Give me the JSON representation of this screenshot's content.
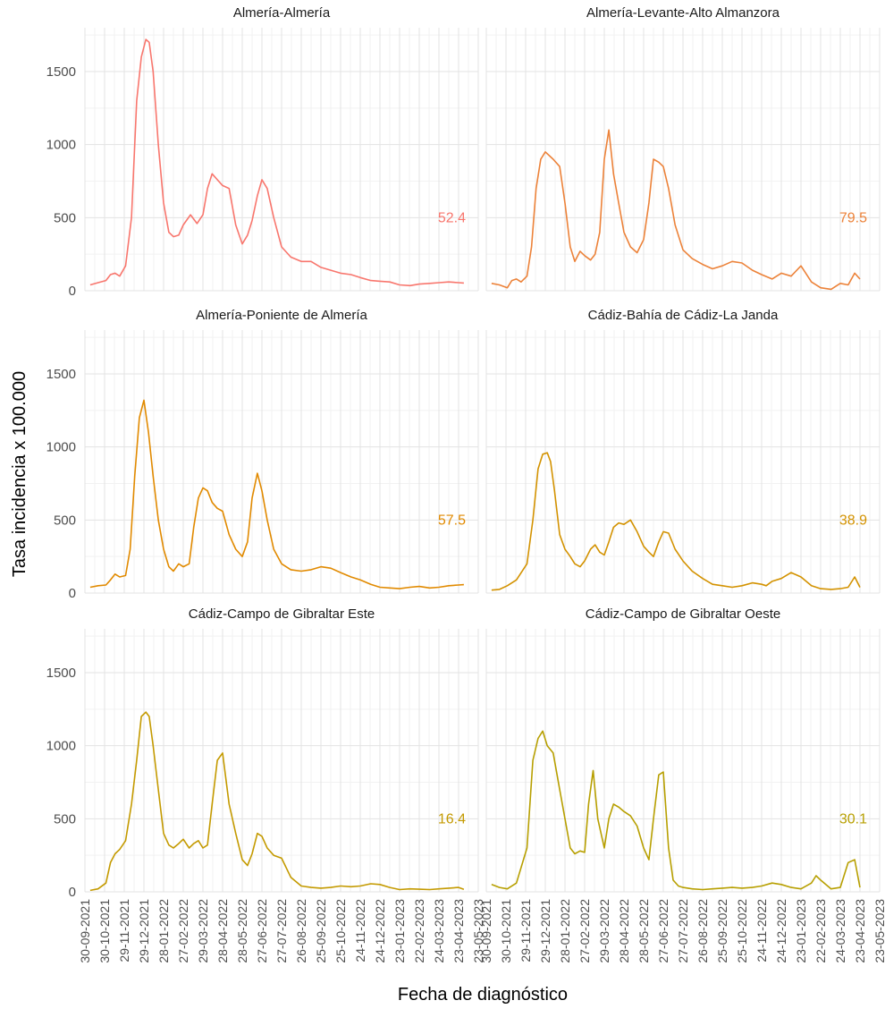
{
  "chart_data": {
    "type": "line",
    "facet_layout": "3 rows x 2 columns, shared axes",
    "xlabel": "Fecha de diagnóstico",
    "ylabel": "Tasa incidencia x 100.000",
    "xlim": [
      "2021-09-30",
      "2023-05-23"
    ],
    "ylim": [
      0,
      1800
    ],
    "yticks": [
      0,
      500,
      1000,
      1500
    ],
    "xticks": [
      "30-09-2021",
      "30-10-2021",
      "29-11-2021",
      "29-12-2021",
      "28-01-2022",
      "27-02-2022",
      "29-03-2022",
      "28-04-2022",
      "28-05-2022",
      "27-06-2022",
      "27-07-2022",
      "26-08-2022",
      "25-09-2022",
      "25-10-2022",
      "24-11-2022",
      "24-12-2022",
      "23-01-2023",
      "22-02-2023",
      "24-03-2023",
      "23-04-2023",
      "23-05-2023"
    ],
    "grid": true,
    "legend": "none",
    "panels": [
      {
        "name": "Almería-Almería",
        "color": "#f8766d",
        "last_value_label": "52.4",
        "x": [
          "2021-10-08",
          "2021-10-20",
          "2021-11-01",
          "2021-11-08",
          "2021-11-15",
          "2021-11-22",
          "2021-12-01",
          "2021-12-10",
          "2021-12-18",
          "2021-12-25",
          "2022-01-01",
          "2022-01-06",
          "2022-01-12",
          "2022-01-20",
          "2022-01-28",
          "2022-02-05",
          "2022-02-12",
          "2022-02-20",
          "2022-02-27",
          "2022-03-10",
          "2022-03-20",
          "2022-03-29",
          "2022-04-05",
          "2022-04-12",
          "2022-04-20",
          "2022-04-28",
          "2022-05-08",
          "2022-05-18",
          "2022-05-28",
          "2022-06-05",
          "2022-06-12",
          "2022-06-20",
          "2022-06-27",
          "2022-07-05",
          "2022-07-15",
          "2022-07-27",
          "2022-08-10",
          "2022-08-26",
          "2022-09-10",
          "2022-09-25",
          "2022-10-10",
          "2022-10-25",
          "2022-11-10",
          "2022-11-24",
          "2022-12-10",
          "2022-12-24",
          "2023-01-08",
          "2023-01-23",
          "2023-02-08",
          "2023-02-22",
          "2023-03-10",
          "2023-03-24",
          "2023-04-08",
          "2023-04-23",
          "2023-05-01"
        ],
        "y": [
          40,
          55,
          70,
          110,
          120,
          100,
          170,
          500,
          1300,
          1600,
          1720,
          1700,
          1500,
          1000,
          600,
          400,
          370,
          380,
          450,
          520,
          460,
          520,
          700,
          800,
          760,
          720,
          700,
          450,
          320,
          380,
          480,
          650,
          760,
          700,
          500,
          300,
          230,
          200,
          200,
          160,
          140,
          120,
          110,
          90,
          70,
          65,
          60,
          40,
          35,
          45,
          50,
          55,
          60,
          55,
          52.4
        ]
      },
      {
        "name": "Almería-Levante-Alto Almanzora",
        "color": "#ec8239",
        "last_value_label": "79.5",
        "x": [
          "2021-10-08",
          "2021-10-20",
          "2021-11-01",
          "2021-11-08",
          "2021-11-15",
          "2021-11-22",
          "2021-12-01",
          "2021-12-08",
          "2021-12-15",
          "2021-12-22",
          "2021-12-29",
          "2022-01-10",
          "2022-01-20",
          "2022-01-28",
          "2022-02-05",
          "2022-02-12",
          "2022-02-20",
          "2022-02-27",
          "2022-03-08",
          "2022-03-15",
          "2022-03-22",
          "2022-03-29",
          "2022-04-05",
          "2022-04-12",
          "2022-04-20",
          "2022-04-28",
          "2022-05-08",
          "2022-05-18",
          "2022-05-28",
          "2022-06-05",
          "2022-06-12",
          "2022-06-20",
          "2022-06-27",
          "2022-07-05",
          "2022-07-15",
          "2022-07-27",
          "2022-08-10",
          "2022-08-26",
          "2022-09-10",
          "2022-09-25",
          "2022-10-10",
          "2022-10-25",
          "2022-11-10",
          "2022-11-24",
          "2022-12-10",
          "2022-12-24",
          "2023-01-08",
          "2023-01-23",
          "2023-02-08",
          "2023-02-22",
          "2023-03-10",
          "2023-03-24",
          "2023-04-05",
          "2023-04-15",
          "2023-04-23"
        ],
        "y": [
          50,
          40,
          20,
          70,
          80,
          60,
          100,
          300,
          700,
          900,
          950,
          900,
          850,
          600,
          300,
          200,
          270,
          240,
          210,
          250,
          400,
          900,
          1100,
          800,
          600,
          400,
          300,
          260,
          350,
          600,
          900,
          880,
          850,
          700,
          450,
          280,
          220,
          180,
          150,
          170,
          200,
          190,
          140,
          110,
          80,
          120,
          100,
          170,
          60,
          20,
          10,
          50,
          40,
          120,
          79.5
        ]
      },
      {
        "name": "Almería-Poniente de Almería",
        "color": "#e18a00",
        "last_value_label": "57.5",
        "x": [
          "2021-10-08",
          "2021-10-20",
          "2021-11-01",
          "2021-11-08",
          "2021-11-15",
          "2021-11-22",
          "2021-12-01",
          "2021-12-08",
          "2021-12-15",
          "2021-12-22",
          "2021-12-29",
          "2022-01-05",
          "2022-01-12",
          "2022-01-20",
          "2022-01-28",
          "2022-02-05",
          "2022-02-12",
          "2022-02-20",
          "2022-02-27",
          "2022-03-08",
          "2022-03-15",
          "2022-03-22",
          "2022-03-29",
          "2022-04-05",
          "2022-04-12",
          "2022-04-20",
          "2022-04-28",
          "2022-05-08",
          "2022-05-18",
          "2022-05-28",
          "2022-06-05",
          "2022-06-12",
          "2022-06-20",
          "2022-06-27",
          "2022-07-05",
          "2022-07-15",
          "2022-07-27",
          "2022-08-10",
          "2022-08-26",
          "2022-09-10",
          "2022-09-25",
          "2022-10-10",
          "2022-10-25",
          "2022-11-10",
          "2022-11-24",
          "2022-12-10",
          "2022-12-24",
          "2023-01-08",
          "2023-01-23",
          "2023-02-08",
          "2023-02-22",
          "2023-03-10",
          "2023-03-24",
          "2023-04-08",
          "2023-04-23",
          "2023-05-01"
        ],
        "y": [
          40,
          50,
          55,
          90,
          130,
          110,
          120,
          300,
          800,
          1200,
          1320,
          1100,
          800,
          500,
          300,
          180,
          150,
          200,
          180,
          200,
          450,
          650,
          720,
          700,
          620,
          580,
          560,
          400,
          300,
          250,
          350,
          650,
          820,
          700,
          500,
          300,
          200,
          160,
          150,
          160,
          180,
          170,
          140,
          110,
          90,
          60,
          40,
          35,
          30,
          40,
          45,
          35,
          40,
          50,
          55,
          57.5
        ]
      },
      {
        "name": "Cádiz-Bahía de Cádiz-La Janda",
        "color": "#d39200",
        "last_value_label": "38.9",
        "x": [
          "2021-10-08",
          "2021-10-20",
          "2021-11-01",
          "2021-11-15",
          "2021-12-01",
          "2021-12-10",
          "2021-12-18",
          "2021-12-25",
          "2022-01-01",
          "2022-01-06",
          "2022-01-12",
          "2022-01-20",
          "2022-01-28",
          "2022-02-05",
          "2022-02-12",
          "2022-02-20",
          "2022-02-27",
          "2022-03-08",
          "2022-03-15",
          "2022-03-22",
          "2022-03-29",
          "2022-04-05",
          "2022-04-12",
          "2022-04-20",
          "2022-04-28",
          "2022-05-08",
          "2022-05-18",
          "2022-05-28",
          "2022-06-05",
          "2022-06-12",
          "2022-06-20",
          "2022-06-27",
          "2022-07-05",
          "2022-07-15",
          "2022-07-27",
          "2022-08-10",
          "2022-08-26",
          "2022-09-10",
          "2022-09-25",
          "2022-10-10",
          "2022-10-25",
          "2022-11-10",
          "2022-11-24",
          "2022-12-01",
          "2022-12-10",
          "2022-12-24",
          "2023-01-08",
          "2023-01-23",
          "2023-02-08",
          "2023-02-22",
          "2023-03-10",
          "2023-03-24",
          "2023-04-05",
          "2023-04-15",
          "2023-04-23"
        ],
        "y": [
          20,
          25,
          50,
          90,
          200,
          500,
          850,
          950,
          960,
          900,
          700,
          400,
          300,
          250,
          200,
          180,
          220,
          300,
          330,
          280,
          260,
          350,
          450,
          480,
          470,
          500,
          420,
          320,
          280,
          250,
          350,
          420,
          410,
          300,
          220,
          150,
          100,
          60,
          50,
          40,
          50,
          70,
          60,
          50,
          80,
          100,
          140,
          110,
          50,
          30,
          25,
          30,
          40,
          110,
          38.9
        ]
      },
      {
        "name": "Cádiz-Campo de Gibraltar Este",
        "color": "#c49a00",
        "last_value_label": "16.4",
        "x": [
          "2021-10-08",
          "2021-10-20",
          "2021-11-01",
          "2021-11-08",
          "2021-11-15",
          "2021-11-22",
          "2021-12-01",
          "2021-12-10",
          "2021-12-18",
          "2021-12-25",
          "2022-01-01",
          "2022-01-06",
          "2022-01-12",
          "2022-01-20",
          "2022-01-28",
          "2022-02-05",
          "2022-02-12",
          "2022-02-20",
          "2022-02-27",
          "2022-03-08",
          "2022-03-15",
          "2022-03-22",
          "2022-03-29",
          "2022-04-05",
          "2022-04-12",
          "2022-04-20",
          "2022-04-28",
          "2022-05-08",
          "2022-05-18",
          "2022-05-28",
          "2022-06-05",
          "2022-06-12",
          "2022-06-20",
          "2022-06-27",
          "2022-07-05",
          "2022-07-15",
          "2022-07-27",
          "2022-08-10",
          "2022-08-26",
          "2022-09-10",
          "2022-09-25",
          "2022-10-10",
          "2022-10-25",
          "2022-11-10",
          "2022-11-24",
          "2022-12-10",
          "2022-12-24",
          "2023-01-08",
          "2023-01-23",
          "2023-02-08",
          "2023-02-22",
          "2023-03-10",
          "2023-03-24",
          "2023-04-08",
          "2023-04-23",
          "2023-05-01"
        ],
        "y": [
          10,
          20,
          60,
          200,
          260,
          290,
          350,
          600,
          900,
          1200,
          1230,
          1200,
          1000,
          700,
          400,
          320,
          300,
          330,
          360,
          300,
          330,
          350,
          300,
          320,
          600,
          900,
          950,
          600,
          400,
          220,
          180,
          260,
          400,
          380,
          300,
          250,
          230,
          100,
          40,
          30,
          25,
          30,
          40,
          35,
          40,
          55,
          50,
          30,
          15,
          20,
          18,
          15,
          20,
          25,
          30,
          16.4
        ]
      },
      {
        "name": "Cádiz-Campo de Gibraltar Oeste",
        "color": "#b79f00",
        "last_value_label": "30.1",
        "x": [
          "2021-10-08",
          "2021-10-20",
          "2021-11-01",
          "2021-11-15",
          "2021-12-01",
          "2021-12-10",
          "2021-12-18",
          "2021-12-25",
          "2022-01-01",
          "2022-01-10",
          "2022-01-20",
          "2022-01-28",
          "2022-02-05",
          "2022-02-12",
          "2022-02-20",
          "2022-02-27",
          "2022-03-05",
          "2022-03-12",
          "2022-03-19",
          "2022-03-29",
          "2022-04-05",
          "2022-04-12",
          "2022-04-20",
          "2022-04-28",
          "2022-05-08",
          "2022-05-18",
          "2022-05-28",
          "2022-06-05",
          "2022-06-12",
          "2022-06-20",
          "2022-06-27",
          "2022-07-05",
          "2022-07-12",
          "2022-07-20",
          "2022-07-27",
          "2022-08-10",
          "2022-08-26",
          "2022-09-10",
          "2022-09-25",
          "2022-10-10",
          "2022-10-25",
          "2022-11-10",
          "2022-11-24",
          "2022-12-10",
          "2022-12-24",
          "2023-01-08",
          "2023-01-23",
          "2023-02-08",
          "2023-02-15",
          "2023-02-22",
          "2023-03-10",
          "2023-03-24",
          "2023-04-05",
          "2023-04-15",
          "2023-04-23"
        ],
        "y": [
          50,
          30,
          20,
          60,
          300,
          900,
          1050,
          1100,
          1000,
          950,
          700,
          500,
          300,
          260,
          280,
          270,
          600,
          830,
          500,
          300,
          500,
          600,
          580,
          550,
          520,
          450,
          300,
          220,
          500,
          800,
          820,
          300,
          80,
          40,
          30,
          20,
          15,
          20,
          25,
          30,
          25,
          30,
          40,
          60,
          50,
          30,
          20,
          60,
          110,
          80,
          20,
          30,
          200,
          220,
          30.1
        ]
      }
    ]
  }
}
